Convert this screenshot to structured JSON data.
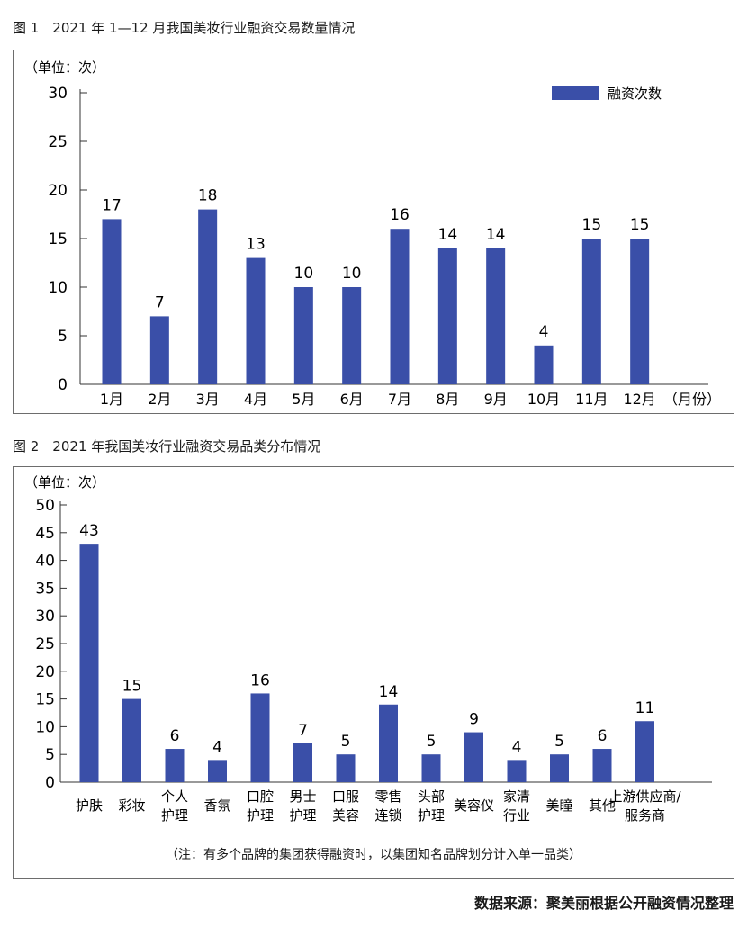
{
  "figure1": {
    "caption": "图 1　2021 年 1—12 月我国美妆行业融资交易数量情况",
    "unit_label": "（单位：次）",
    "x_unit_label": "（月份）",
    "legend": "融资次数",
    "bar_color": "#3a4fa8"
  },
  "figure2": {
    "caption": "图 2　2021 年我国美妆行业融资交易品类分布情况",
    "unit_label": "（单位：次）",
    "note": "（注：有多个品牌的集团获得融资时，以集团知名品牌划分计入单一品类）",
    "bar_color": "#3a4fa8"
  },
  "source": "数据来源：聚美丽根据公开融资情况整理",
  "chart_data": [
    {
      "type": "bar",
      "title": "2021 年 1—12 月我国美妆行业融资交易数量情况",
      "categories": [
        "1月",
        "2月",
        "3月",
        "4月",
        "5月",
        "6月",
        "7月",
        "8月",
        "9月",
        "10月",
        "11月",
        "12月"
      ],
      "series": [
        {
          "name": "融资次数",
          "values": [
            17,
            7,
            18,
            13,
            10,
            10,
            16,
            14,
            14,
            4,
            15,
            15
          ]
        }
      ],
      "ylabel": "（单位：次）",
      "xlabel": "（月份）",
      "ylim": [
        0,
        30
      ],
      "yticks": [
        0,
        5,
        10,
        15,
        20,
        25,
        30
      ],
      "legend": "top-right",
      "grid": false
    },
    {
      "type": "bar",
      "title": "2021 年我国美妆行业融资交易品类分布情况",
      "categories": [
        "护肤",
        "彩妆",
        "个人护理",
        "香氛",
        "口腔护理",
        "男士护理",
        "口服美容",
        "零售连锁",
        "头部护理",
        "美容仪",
        "家清行业",
        "美瞳",
        "其他",
        "上游供应商/服务商"
      ],
      "category_lines": [
        [
          "护肤"
        ],
        [
          "彩妆"
        ],
        [
          "个人",
          "护理"
        ],
        [
          "香氛"
        ],
        [
          "口腔",
          "护理"
        ],
        [
          "男士",
          "护理"
        ],
        [
          "口服",
          "美容"
        ],
        [
          "零售",
          "连锁"
        ],
        [
          "头部",
          "护理"
        ],
        [
          "美容仪"
        ],
        [
          "家清",
          "行业"
        ],
        [
          "美瞳"
        ],
        [
          "其他"
        ],
        [
          "上游供应商/",
          "服务商"
        ]
      ],
      "values": [
        43,
        15,
        6,
        4,
        16,
        7,
        5,
        14,
        5,
        9,
        4,
        5,
        6,
        11
      ],
      "ylabel": "（单位：次）",
      "ylim": [
        0,
        50
      ],
      "yticks": [
        0,
        5,
        10,
        15,
        20,
        25,
        30,
        35,
        40,
        45,
        50
      ],
      "grid": false
    }
  ]
}
